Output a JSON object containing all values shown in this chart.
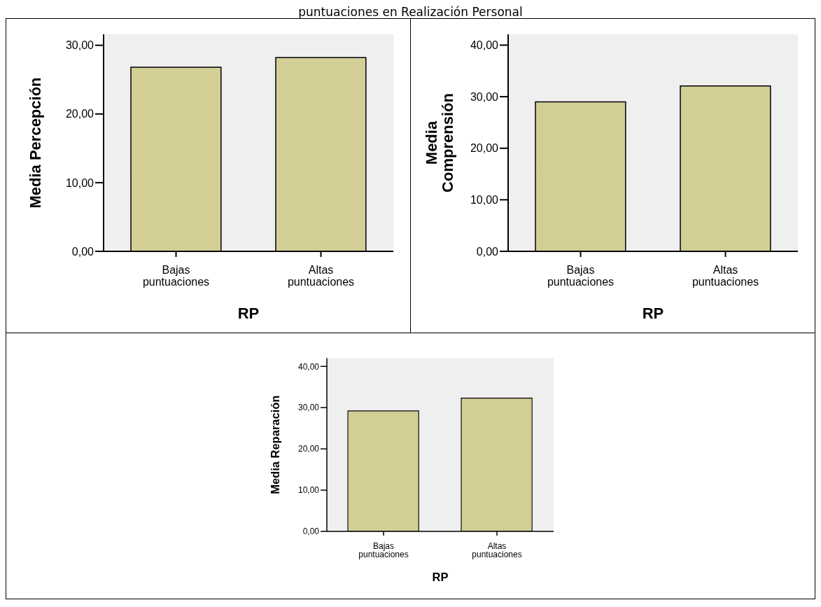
{
  "chart_data": [
    {
      "type": "bar",
      "title": "puntuaciones en Realización Personal",
      "categories": [
        "Bajas puntuaciones",
        "Altas puntuaciones"
      ],
      "values": [
        26.8,
        28.2
      ],
      "color": "#d3ce96",
      "xlabel": "RP",
      "ylabel": "Media Percepción",
      "ylim": [
        0,
        31.6
      ],
      "yticks": [
        {
          "value": 0,
          "label": "0,00"
        },
        {
          "value": 10,
          "label": "10,00"
        },
        {
          "value": 20,
          "label": "20,00"
        },
        {
          "value": 30,
          "label": "30,00"
        }
      ]
    },
    {
      "type": "bar",
      "categories": [
        "Bajas puntuaciones",
        "Altas puntuaciones"
      ],
      "values": [
        29.0,
        32.1
      ],
      "color": "#d3ce96",
      "xlabel": "RP",
      "ylabel": "Media\nComprensión",
      "ylim": [
        0,
        42.1
      ],
      "yticks": [
        {
          "value": 0,
          "label": "0,00"
        },
        {
          "value": 10,
          "label": "10,00"
        },
        {
          "value": 20,
          "label": "20,00"
        },
        {
          "value": 30,
          "label": "30,00"
        },
        {
          "value": 40,
          "label": "40,00"
        }
      ]
    },
    {
      "type": "bar",
      "categories": [
        "Bajas puntuaciones",
        "Altas puntuaciones"
      ],
      "values": [
        29.2,
        32.3
      ],
      "color": "#d3ce96",
      "xlabel": "RP",
      "ylabel": "Media Reparación",
      "ylim": [
        0,
        42.0
      ],
      "yticks": [
        {
          "value": 0,
          "label": "0,00"
        },
        {
          "value": 10,
          "label": "10,00"
        },
        {
          "value": 20,
          "label": "20,00"
        },
        {
          "value": 30,
          "label": "30,00"
        },
        {
          "value": 40,
          "label": "40,00"
        }
      ]
    }
  ]
}
